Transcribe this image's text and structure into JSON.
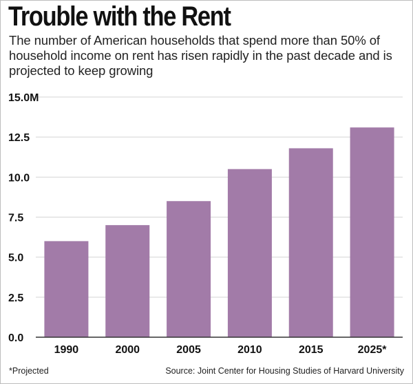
{
  "title": "Trouble with the Rent",
  "subtitle": "The number of American households that spend more than 50% of household income on rent has risen rapidly in the past decade and is projected to keep growing",
  "footnote": "*Projected",
  "source": "Source: Joint Center for Housing Studies of Harvard University",
  "colors": {
    "bar": "#a27ba8",
    "grid": "#d4d4d4",
    "axis": "#333333"
  },
  "chart_data": {
    "type": "bar",
    "title": "Trouble with the Rent",
    "xlabel": "",
    "ylabel": "",
    "categories": [
      "1990",
      "2000",
      "2005",
      "2010",
      "2015",
      "2025*"
    ],
    "values": [
      6.0,
      7.0,
      8.5,
      10.5,
      11.8,
      13.1
    ],
    "ylim": [
      0,
      15
    ],
    "yticks": [
      0,
      2.5,
      5,
      7.5,
      10,
      12.5,
      15
    ],
    "ytick_labels": [
      "0.0",
      "2.5",
      "5.0",
      "7.5",
      "10.0",
      "12.5",
      "15.0M"
    ],
    "grid": true,
    "legend": "none"
  }
}
